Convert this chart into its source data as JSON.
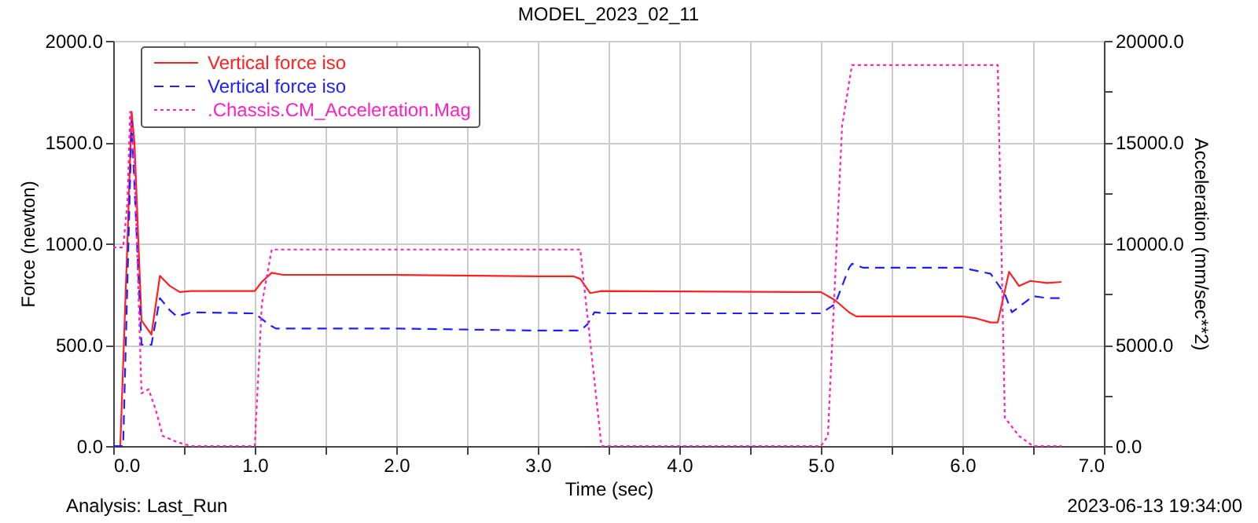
{
  "chart_data": {
    "type": "line",
    "title": "MODEL_2023_02_11",
    "xlabel": "Time (sec)",
    "ylabel": "Force (newton)",
    "y2label": "Acceleration (mm/sec**2)",
    "annotations": [
      "Analysis:  Last_Run",
      "2023-06-13 19:34:00"
    ],
    "xlim": [
      0,
      7
    ],
    "xticks": [
      {
        "value": 0,
        "label": "0.0"
      },
      {
        "value": 0.5,
        "label": null
      },
      {
        "value": 1,
        "label": "1.0"
      },
      {
        "value": 1.5,
        "label": null
      },
      {
        "value": 2,
        "label": "2.0"
      },
      {
        "value": 2.5,
        "label": null
      },
      {
        "value": 3,
        "label": "3.0"
      },
      {
        "value": 3.5,
        "label": null
      },
      {
        "value": 4,
        "label": "4.0"
      },
      {
        "value": 4.5,
        "label": null
      },
      {
        "value": 5,
        "label": "5.0"
      },
      {
        "value": 5.5,
        "label": null
      },
      {
        "value": 6,
        "label": "6.0"
      },
      {
        "value": 6.5,
        "label": null
      },
      {
        "value": 7,
        "label": "7.0"
      }
    ],
    "ylim": [
      0,
      2000
    ],
    "yticks": [
      {
        "value": 0,
        "label": "0.0"
      },
      {
        "value": 250,
        "label": null
      },
      {
        "value": 500,
        "label": "500.0"
      },
      {
        "value": 750,
        "label": null
      },
      {
        "value": 1000,
        "label": "1000.0"
      },
      {
        "value": 1250,
        "label": null
      },
      {
        "value": 1500,
        "label": "1500.0"
      },
      {
        "value": 1750,
        "label": null
      },
      {
        "value": 2000,
        "label": "2000.0"
      }
    ],
    "y2lim": [
      0,
      20000
    ],
    "y2ticks": [
      {
        "value": 0,
        "label": "0.0"
      },
      {
        "value": 2500,
        "label": null
      },
      {
        "value": 5000,
        "label": "5000.0"
      },
      {
        "value": 7500,
        "label": null
      },
      {
        "value": 10000,
        "label": "10000.0"
      },
      {
        "value": 12500,
        "label": null
      },
      {
        "value": 15000,
        "label": "15000.0"
      },
      {
        "value": 17500,
        "label": null
      },
      {
        "value": 20000,
        "label": "20000.0"
      }
    ],
    "grid": true,
    "legend": "top left",
    "marker": "none",
    "series": [
      {
        "name": "Vertical force iso",
        "color": "#ff2020",
        "line_style": "solid",
        "x": [
          0,
          0.05,
          0.1,
          0.13,
          0.15,
          0.2,
          0.27,
          0.33,
          0.4,
          0.47,
          0.55,
          1.0,
          1.05,
          1.12,
          1.2,
          2.0,
          3.0,
          3.25,
          3.3,
          3.37,
          3.45,
          5.0,
          5.1,
          5.2,
          5.25,
          6.0,
          6.1,
          6.2,
          6.25,
          6.33,
          6.4,
          6.48,
          6.6,
          6.7
        ],
        "values": [
          0,
          0,
          1000,
          1650,
          1500,
          620,
          550,
          840,
          790,
          760,
          765,
          765,
          810,
          855,
          845,
          845,
          838,
          838,
          825,
          755,
          765,
          760,
          720,
          660,
          640,
          640,
          630,
          610,
          610,
          860,
          790,
          815,
          805,
          810
        ]
      },
      {
        "name": "Vertical force iso",
        "color": "#2020ff",
        "line_style": "dashed",
        "x": [
          0,
          0.07,
          0.13,
          0.2,
          0.27,
          0.33,
          0.4,
          0.45,
          0.55,
          1.0,
          1.1,
          1.15,
          2.0,
          3.0,
          3.3,
          3.35,
          3.4,
          3.5,
          5.0,
          5.1,
          5.2,
          5.22,
          5.3,
          6.0,
          6.2,
          6.3,
          6.35,
          6.5,
          6.6,
          6.7
        ],
        "values": [
          0,
          0,
          1600,
          500,
          500,
          730,
          670,
          640,
          660,
          655,
          600,
          580,
          580,
          570,
          570,
          600,
          660,
          655,
          655,
          700,
          880,
          900,
          880,
          880,
          850,
          750,
          660,
          740,
          730,
          730
        ]
      },
      {
        "name": ".Chassis.CM_Acceleration.Mag",
        "color": "#ff20c0",
        "line_style": "dotted",
        "axis": "y2",
        "x": [
          0,
          0.07,
          0.1,
          0.12,
          0.15,
          0.2,
          0.25,
          0.3,
          0.35,
          0.45,
          0.55,
          1.0,
          1.05,
          1.12,
          3.3,
          3.45,
          5.0,
          5.05,
          5.15,
          5.22,
          6.25,
          6.3,
          6.4,
          6.5,
          6.7
        ],
        "values": [
          9800,
          9800,
          12000,
          16500,
          14000,
          2600,
          2800,
          1800,
          500,
          200,
          0,
          0,
          7000,
          9700,
          9700,
          0,
          0,
          500,
          15800,
          18800,
          18800,
          1400,
          500,
          0,
          0
        ]
      }
    ]
  }
}
